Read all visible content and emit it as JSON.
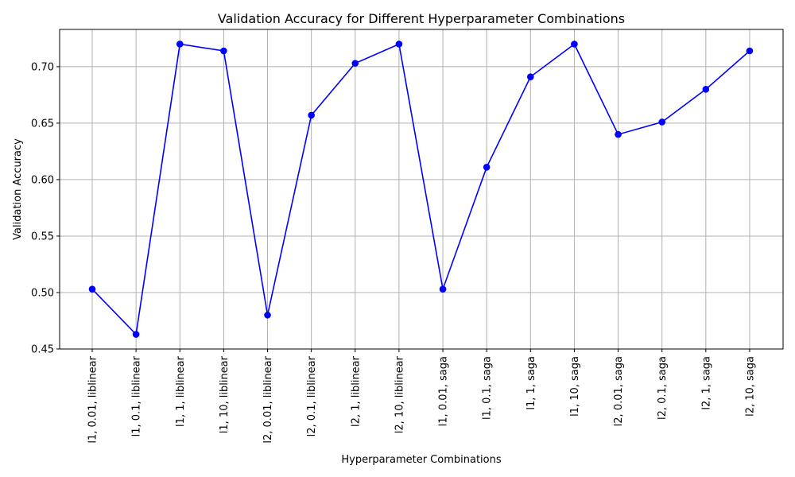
{
  "chart_data": {
    "type": "line",
    "title": "Validation Accuracy for Different Hyperparameter Combinations",
    "xlabel": "Hyperparameter Combinations",
    "ylabel": "Validation Accuracy",
    "ylim": [
      0.45,
      0.733
    ],
    "yticks": [
      "0.45",
      "0.50",
      "0.55",
      "0.60",
      "0.65",
      "0.70"
    ],
    "grid": true,
    "line_color": "#0000ff",
    "marker": "circle",
    "categories": [
      "l1, 0.01, liblinear",
      "l1, 0.1, liblinear",
      "l1, 1, liblinear",
      "l1, 10, liblinear",
      "l2, 0.01, liblinear",
      "l2, 0.1, liblinear",
      "l2, 1, liblinear",
      "l2, 10, liblinear",
      "l1, 0.01, saga",
      "l1, 0.1, saga",
      "l1, 1, saga",
      "l1, 10, saga",
      "l2, 0.01, saga",
      "l2, 0.1, saga",
      "l2, 1, saga",
      "l2, 10, saga"
    ],
    "values": [
      0.503,
      0.463,
      0.72,
      0.714,
      0.48,
      0.657,
      0.703,
      0.72,
      0.503,
      0.611,
      0.691,
      0.72,
      0.64,
      0.651,
      0.68,
      0.714
    ]
  }
}
